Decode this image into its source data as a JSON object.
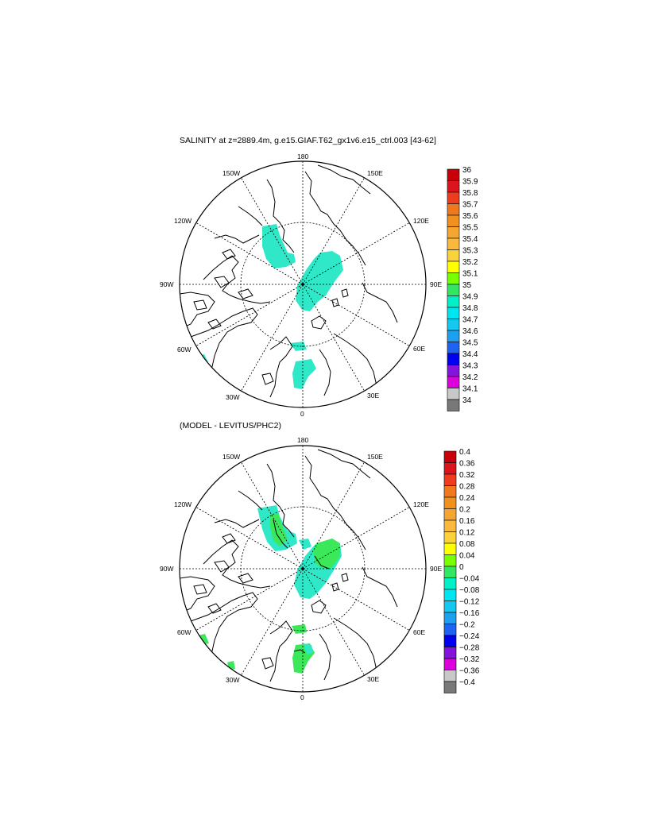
{
  "top_panel": {
    "title": "SALINITY at z=2889.4m, g.e15.GIAF.T62_gx1v6.e15_ctrl.003 [43-62]",
    "longitude_labels": {
      "n": "180",
      "ne": "150E",
      "e1": "120E",
      "e": "90E",
      "se1": "60E",
      "se2": "30E",
      "s": "0",
      "sw1": "30W",
      "sw2": "60W",
      "w": "90W",
      "nw1": "120W",
      "nw2": "150W"
    },
    "colorbar": {
      "labels": [
        "36",
        "35.9",
        "35.8",
        "35.7",
        "35.6",
        "35.5",
        "35.4",
        "35.3",
        "35.2",
        "35.1",
        "35",
        "34.9",
        "34.8",
        "34.7",
        "34.6",
        "34.5",
        "34.4",
        "34.3",
        "34.2",
        "34.1",
        "34"
      ],
      "colors": [
        "#c8000a",
        "#dc141e",
        "#f03c1e",
        "#f0781e",
        "#f0901e",
        "#f5a532",
        "#fab93c",
        "#fad23c",
        "#ffff00",
        "#78ff00",
        "#32e664",
        "#00f0c8",
        "#00e6f0",
        "#14c8f0",
        "#1ea0f0",
        "#1e64f0",
        "#0000f0",
        "#8214dc",
        "#dc00dc",
        "#c8c8c8",
        "#787878"
      ]
    },
    "salinity_mode": "salinity"
  },
  "bottom_panel": {
    "title": "(MODEL - LEVITUS/PHC2)",
    "longitude_labels": {
      "n": "180",
      "ne": "150E",
      "e1": "120E",
      "e": "90E",
      "se1": "60E",
      "se2": "30E",
      "s": "0",
      "sw1": "30W",
      "sw2": "60W",
      "w": "90W",
      "nw1": "120W",
      "nw2": "150W"
    },
    "colorbar": {
      "labels": [
        "0.4",
        "0.36",
        "0.32",
        "0.28",
        "0.24",
        "0.2",
        "0.16",
        "0.12",
        "0.08",
        "0.04",
        "0",
        "−0.04",
        "−0.08",
        "−0.12",
        "−0.16",
        "−0.2",
        "−0.24",
        "−0.28",
        "−0.32",
        "−0.36",
        "−0.4"
      ],
      "colors": [
        "#c8000a",
        "#dc141e",
        "#f03c1e",
        "#f0781e",
        "#f0901e",
        "#f5a532",
        "#fab93c",
        "#fad23c",
        "#ffff00",
        "#78ff00",
        "#32e664",
        "#00f0c8",
        "#00e6f0",
        "#14c8f0",
        "#1ea0f0",
        "#1e64f0",
        "#0000f0",
        "#8214dc",
        "#dc00dc",
        "#c8c8c8",
        "#787878"
      ]
    },
    "salinity_mode": "difference"
  },
  "colors": {
    "fill_cyan": "#2ee8c8",
    "fill_green": "#3ae85a",
    "land_stroke": "#000000"
  }
}
